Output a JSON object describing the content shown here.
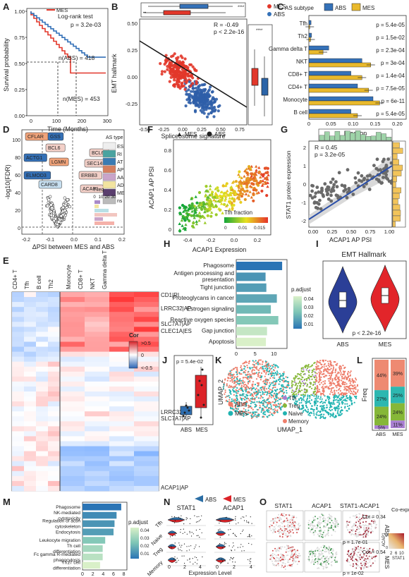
{
  "colors": {
    "abs": "#3471b8",
    "mes": "#e2372a",
    "gold": "#e9b92c",
    "boxblue": "#2b6ea5"
  },
  "panels": {
    "A": {
      "letter": "A",
      "ylabel": "Survival probability",
      "xlabel": "Time (Months)",
      "test": "Log-rank test",
      "p": "p = 3.2e-03",
      "n_abs": "n(ABS) = 418",
      "n_mes": "n(MES) = 453",
      "yticks": [
        "1.00",
        "0.75",
        "0.50",
        "0.25",
        "0.00"
      ],
      "xticks": [
        "0",
        "100",
        "200",
        "300"
      ],
      "legend": [
        "MES",
        "ABS"
      ]
    },
    "B": {
      "letter": "B",
      "legend": [
        "MES",
        "ABS"
      ],
      "ylabel": "EMT hallmark",
      "xlabel": "Spliceosome signature",
      "r": "R = -0.49",
      "p": "p < 2.2e-16",
      "yticks": [
        "0.50",
        "0.25",
        "0.00",
        "-0.25"
      ],
      "xticks": [
        "-0.50",
        "-0.25",
        "0.00",
        "0.25",
        "0.50",
        "0.75"
      ],
      "sig_top": "****",
      "sig_right": "****"
    },
    "C": {
      "letter": "C",
      "legend_title": "AS subtype",
      "legend": [
        "ABS",
        "MES"
      ],
      "xlabel": "Fraction",
      "xticks": [
        "0",
        "0.05",
        "0.10",
        "0.15",
        "0.20"
      ],
      "rows": [
        {
          "label": "Tfh",
          "p": "p = 5.4e-05",
          "abs": 0.005,
          "mes": 0.002
        },
        {
          "label": "Th2",
          "p": "p = 1.5e-02",
          "abs": 0.006,
          "mes": 0.004
        },
        {
          "label": "Gamma delta T",
          "p": "p = 2.3e-04",
          "abs": 0.045,
          "mes": 0.032
        },
        {
          "label": "NKT",
          "p": "p = 3e-04",
          "abs": 0.12,
          "mes": 0.14
        },
        {
          "label": "CD8+ T",
          "p": "p = 1.4e-04",
          "abs": 0.095,
          "mes": 0.12
        },
        {
          "label": "CD4+ T",
          "p": "p = 7.5e-05",
          "abs": 0.11,
          "mes": 0.135
        },
        {
          "label": "Monocyte",
          "p": "p = 6e-11",
          "abs": 0.145,
          "mes": 0.16
        },
        {
          "label": "B cell",
          "p": "p = 5.4e-05",
          "abs": 0.095,
          "mes": 0.11
        }
      ]
    },
    "D": {
      "letter": "D",
      "ylabel": "-log10(FDR)",
      "xlabel": "ΔPSI between MES and ABS",
      "yticks": [
        "100",
        "80",
        "60",
        "40",
        "20",
        "0"
      ],
      "xticks": [
        "-0.2",
        "-0.1",
        "0.0",
        "0.1",
        "0.2"
      ],
      "genes": [
        "CFLAR",
        "GSS",
        "BCL6",
        "BCL6",
        "ACTG1",
        "LGMN",
        "SEC14L1",
        "ELMOD3",
        "ERBB3",
        "CARD8",
        "ACAP1"
      ],
      "as_type_title": "AS type",
      "as_types": [
        "ES",
        "RI",
        "AT",
        "AP",
        "AA",
        "AD",
        "ME",
        "ns"
      ],
      "freq_title": "Freq",
      "freq_ticks": [
        "0",
        "10",
        "20",
        "30"
      ]
    },
    "E": {
      "letter": "E",
      "columns": [
        "CD4+ T",
        "Tfh",
        "B cell",
        "Th2",
        "Monocyte",
        "CD8+ T",
        "NKT",
        "Gamma delta T"
      ],
      "row_labels": [
        "CD1|RI",
        "LRRC32|AP",
        "SLC7A7|AP",
        "CLEC1A|ES",
        "LRRC32|AP",
        "SLC7A7|AP",
        "ACAP1|AP"
      ],
      "legend_title": "Cor",
      "legend_ticks": [
        ">0.5",
        "0",
        "<-0.5"
      ]
    },
    "F": {
      "letter": "F",
      "legend": [
        "MES",
        "ABS"
      ],
      "ylabel": "ACAP1 AP PSI",
      "xlabel": "ACAP1 Expression",
      "yticks": [
        "0.8",
        "0.6",
        "0.4",
        "0.2",
        "0"
      ],
      "xticks": [
        "-0.4",
        "-0.2",
        "0.0",
        "0.2"
      ],
      "cbar_title": "Tfh fraction",
      "cbar_ticks": [
        "0",
        "0.01",
        "0.015"
      ]
    },
    "G": {
      "letter": "G",
      "ylabel": "STAT1 protein expression",
      "xlabel": "ACAP1 AP PSI",
      "r": "R = 0.45",
      "p": "p = 3.2e-05",
      "yticks": [
        "2",
        "1",
        "0",
        "-1",
        "-2"
      ],
      "xticks": [
        "0.00",
        "0.25",
        "0.50",
        "0.75",
        "1.00"
      ]
    },
    "H": {
      "letter": "H",
      "legend_title": "p.adjust",
      "legend_ticks": [
        "0.04",
        "0.03",
        "0.02",
        "0.01"
      ],
      "xticks": [
        "0",
        "5",
        "10"
      ],
      "terms": [
        {
          "label": "Phagosome",
          "count": 12.2,
          "padj": 0.005
        },
        {
          "label": "Antigen processing and presentation",
          "count": 7.8,
          "padj": 0.012
        },
        {
          "label": "Tight junction",
          "count": 8.0,
          "padj": 0.014
        },
        {
          "label": "Proteoglycans in cancer",
          "count": 10.8,
          "padj": 0.016
        },
        {
          "label": "Estrogen signaling",
          "count": 9.2,
          "padj": 0.02
        },
        {
          "label": "Reactive oxygen species",
          "count": 11.2,
          "padj": 0.024
        },
        {
          "label": "Gap junction",
          "count": 8.2,
          "padj": 0.036
        },
        {
          "label": "Apoptosis",
          "count": 7.9,
          "padj": 0.04
        }
      ]
    },
    "I": {
      "letter": "I",
      "title": "EMT Hallmark",
      "p": "p < 2.2e-16",
      "groups": [
        "ABS",
        "MES"
      ]
    },
    "J": {
      "letter": "J",
      "p": "p = 5.4e-02",
      "groups": [
        "ABS",
        "MES"
      ]
    },
    "K": {
      "letter": "K",
      "ylabel": "UMAP_2",
      "xlabel": "UMAP_1",
      "legend_left": [
        "ABS",
        "MES"
      ],
      "legend_right": [
        "Tfh",
        "Treg",
        "Naive",
        "Memory"
      ]
    },
    "L": {
      "letter": "L",
      "ylabel": "Freq",
      "groups": [
        "ABS",
        "MES"
      ],
      "stacks": [
        {
          "name": "Memory",
          "color": "#ee8a72",
          "abs": 44,
          "mes": 39
        },
        {
          "name": "Naive",
          "color": "#2db7b0",
          "abs": 24,
          "mes": 24
        },
        {
          "name": "Treg",
          "color": "#86b738",
          "abs": 27,
          "mes": 25
        },
        {
          "name": "Tfh",
          "color": "#a97fd1",
          "abs": 5,
          "mes": 11
        }
      ],
      "labels_abs": [
        "44%",
        "27%",
        "24%",
        "5%"
      ],
      "labels_mes": [
        "39%",
        "25%",
        "24%",
        "11%"
      ]
    },
    "M": {
      "letter": "M",
      "legend_title": "p.adjust",
      "legend_ticks": [
        "0.04",
        "0.03",
        "0.02",
        "0.01"
      ],
      "xticks": [
        "0",
        "2",
        "4",
        "6",
        "8"
      ],
      "terms": [
        {
          "label": "Phagosome",
          "count": 7.5,
          "padj": 0.005
        },
        {
          "label": "NK-mediated cytotoxicity",
          "count": 6.6,
          "padj": 0.01
        },
        {
          "label": "Regulation of actin cytoskeleton",
          "count": 6.2,
          "padj": 0.012
        },
        {
          "label": "Endocytosis",
          "count": 6.0,
          "padj": 0.014
        },
        {
          "label": "Leukocyte migration",
          "count": 4.4,
          "padj": 0.024
        },
        {
          "label": "Th cell differentiation",
          "count": 3.9,
          "padj": 0.03
        },
        {
          "label": "Fc gamma R-mediated phagocytosis",
          "count": 3.9,
          "padj": 0.034
        },
        {
          "label": "Th17 cell differentiation",
          "count": 3.4,
          "padj": 0.04
        }
      ]
    },
    "N": {
      "letter": "N",
      "legend": [
        "ABS",
        "MES"
      ],
      "genes": [
        "STAT1",
        "ACAP1"
      ],
      "cells": [
        "Tfh",
        "Naive",
        "Treg",
        "Memory"
      ],
      "xlabel": "Expression Level",
      "xticks": [
        "0",
        "2",
        "4"
      ]
    },
    "O": {
      "letter": "O",
      "headers": [
        "STAT1",
        "ACAP1",
        "STAT1-ACAP1"
      ],
      "rows": [
        {
          "label": "ABS",
          "cor": "Cor = 0.34",
          "p": "p = 1.7e-01"
        },
        {
          "label": "MES",
          "cor": "Cor = 0.54",
          "p": "p = 1e-02"
        }
      ],
      "legend_title": "Co-expression",
      "legend_y": "ACAP1",
      "legend_x": "STAT1",
      "legend_ticks": [
        "2",
        "6",
        "10"
      ],
      "legend_yticks": [
        "10",
        "0"
      ]
    }
  }
}
